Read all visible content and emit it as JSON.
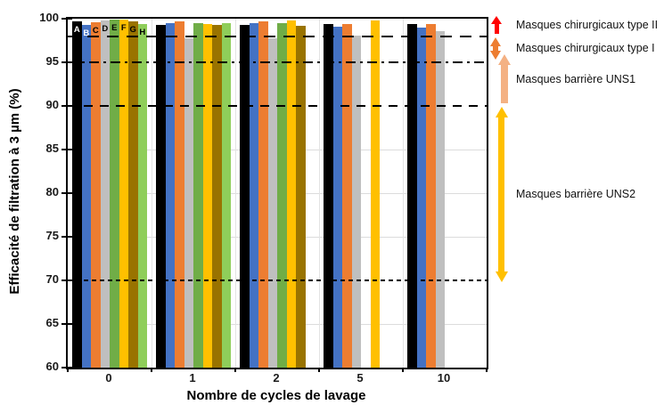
{
  "chart_data": {
    "type": "bar",
    "title": "",
    "xlabel": "Nombre de cycles de lavage",
    "ylabel": "Efficacité de filtration à 3 µm (%)",
    "ylim": [
      60,
      100
    ],
    "yticks": [
      100,
      95,
      90,
      85,
      80,
      75,
      70,
      65,
      60
    ],
    "categories": [
      "0",
      "1",
      "2",
      "5",
      "10"
    ],
    "legend_position": "none",
    "bar_letter_labels_on_first_group": [
      "A",
      "B",
      "C",
      "D",
      "E",
      "F",
      "G",
      "H"
    ],
    "series": [
      {
        "name": "A",
        "color": "#000000",
        "label_color": "#ffffff",
        "values": [
          99.7,
          99.3,
          99.3,
          99.4,
          99.4
        ]
      },
      {
        "name": "B",
        "color": "#4472C4",
        "label_color": "#ffffff",
        "values": [
          99.3,
          99.5,
          99.5,
          99.1,
          99.0
        ]
      },
      {
        "name": "C",
        "color": "#ED7D31",
        "label_color": "#000000",
        "values": [
          99.6,
          99.7,
          99.7,
          99.4,
          99.4
        ]
      },
      {
        "name": "D",
        "color": "#BFBFBF",
        "label_color": "#000000",
        "values": [
          99.8,
          97.8,
          97.8,
          98.1,
          98.6
        ]
      },
      {
        "name": "E",
        "color": "#70AD47",
        "label_color": "#000000",
        "values": [
          99.9,
          99.5,
          99.5,
          null,
          null
        ]
      },
      {
        "name": "F",
        "color": "#FFC000",
        "label_color": "#000000",
        "values": [
          99.9,
          99.4,
          99.8,
          99.8,
          null
        ]
      },
      {
        "name": "G",
        "color": "#997300",
        "label_color": "#000000",
        "values": [
          99.7,
          99.3,
          99.2,
          null,
          null
        ]
      },
      {
        "name": "H",
        "color": "#8FCE5A",
        "label_color": "#000000",
        "values": [
          99.4,
          99.5,
          null,
          null,
          null
        ]
      }
    ],
    "reference_lines": [
      {
        "value": 98,
        "style": "dash-long"
      },
      {
        "value": 95,
        "style": "dash-dot"
      },
      {
        "value": 90,
        "style": "dash-mid"
      },
      {
        "value": 70,
        "style": "dash-short"
      }
    ],
    "minor_gridlines": [
      85,
      80,
      75,
      65
    ]
  },
  "annotations": {
    "items": [
      {
        "label": "Masques chirurgicaux type II",
        "arrow_color": "#FF0000",
        "value_range": [
          98.3,
          100.3
        ],
        "heads": "up"
      },
      {
        "label": "Masques chirurgicaux type I",
        "arrow_color": "#ED7D31",
        "value_range": [
          95.3,
          97.9
        ],
        "heads": "both"
      },
      {
        "label": "Masques barrière UNS1",
        "arrow_color": "#F4B183",
        "value_range": [
          90.3,
          95.9
        ],
        "heads": "up"
      },
      {
        "label": "Masques barrière UNS2",
        "arrow_color": "#FFC000",
        "value_range": [
          69.8,
          89.9
        ],
        "heads": "both"
      }
    ]
  }
}
